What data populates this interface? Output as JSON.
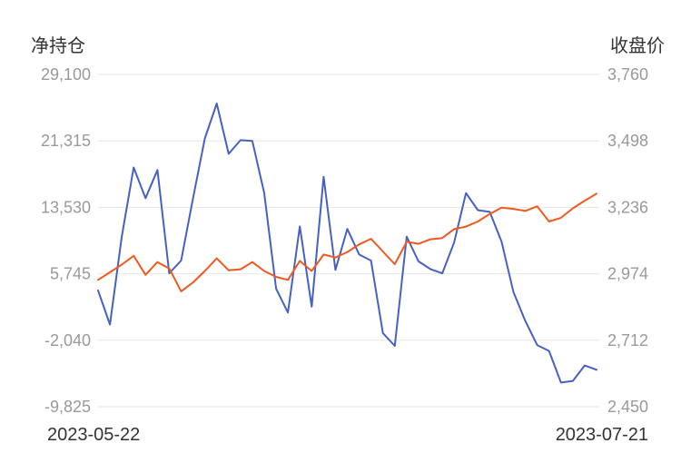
{
  "chart_data": {
    "type": "line",
    "left_axis": {
      "title": "净持仓",
      "ticks": [
        "29,100",
        "21,315",
        "13,530",
        "5,745",
        "-2,040",
        "-9,825"
      ],
      "ylim": [
        -9825,
        29100
      ]
    },
    "right_axis": {
      "title": "收盘价",
      "ticks": [
        "3,760",
        "3,498",
        "3,236",
        "2,974",
        "2,712",
        "2,450"
      ],
      "ylim": [
        2450,
        3760
      ]
    },
    "x_range_labels": [
      "2023-05-22",
      "2023-07-21"
    ],
    "grid": true,
    "series": [
      {
        "axis": "left",
        "color": "#4561c4",
        "values": [
          3800,
          -200,
          10100,
          18200,
          14600,
          17900,
          5800,
          7300,
          14600,
          21600,
          25700,
          19800,
          21400,
          21300,
          15200,
          4000,
          1200,
          11300,
          1900,
          17100,
          6200,
          11000,
          8000,
          7300,
          -1200,
          -2700,
          10100,
          7200,
          6300,
          5800,
          9400,
          15200,
          13200,
          13000,
          9500,
          3600,
          200,
          -2600,
          -3300,
          -7000,
          -6800,
          -5000,
          -5500
        ]
      },
      {
        "axis": "right",
        "color": "#f0581e",
        "values": [
          2950,
          2980,
          3010,
          3045,
          2970,
          3020,
          2995,
          2905,
          2940,
          2985,
          3035,
          2988,
          2992,
          3020,
          2985,
          2962,
          2950,
          3025,
          2985,
          3050,
          3038,
          3060,
          3090,
          3112,
          3062,
          3012,
          3100,
          3092,
          3110,
          3115,
          3150,
          3160,
          3180,
          3210,
          3235,
          3230,
          3222,
          3240,
          3180,
          3195,
          3232,
          3262,
          3290
        ]
      }
    ]
  }
}
